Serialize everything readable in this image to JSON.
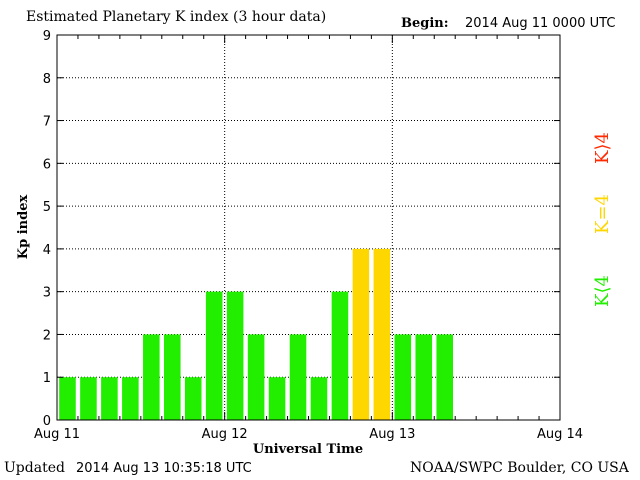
{
  "header": {
    "title": "Estimated Planetary K index (3 hour data)",
    "begin_label": "Begin:",
    "begin_value": "2014 Aug 11 0000 UTC"
  },
  "footer": {
    "updated_label": "Updated",
    "updated_value": "2014 Aug 13 10:35:18 UTC",
    "source": "NOAA/SWPC Boulder, CO USA"
  },
  "chart_data": {
    "type": "bar",
    "title": "Estimated Planetary K index (3 hour data)",
    "xlabel": "Universal Time",
    "ylabel": "Kp index",
    "ylim": [
      0,
      9
    ],
    "yticks": [
      0,
      1,
      2,
      3,
      4,
      5,
      6,
      7,
      8,
      9
    ],
    "x_tick_labels": [
      "Aug 11",
      "Aug 12",
      "Aug 13",
      "Aug 14"
    ],
    "slots_per_day": 8,
    "values": [
      1,
      1,
      1,
      1,
      2,
      2,
      1,
      3,
      3,
      2,
      1,
      2,
      1,
      3,
      4,
      4,
      2,
      2,
      2
    ],
    "grid": true,
    "colors": {
      "below_4": "#22ee00",
      "equal_4": "#ffd700",
      "above_4": "#ff2a00"
    },
    "legend": [
      {
        "label": "K⟨4",
        "color": "#22ee00"
      },
      {
        "label": "K=4",
        "color": "#ffd700"
      },
      {
        "label": "K⟩4",
        "color": "#ff2a00"
      }
    ],
    "legend_placement": "right"
  }
}
